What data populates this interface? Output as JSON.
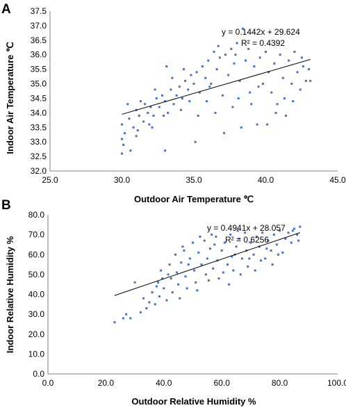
{
  "chart_data": [
    {
      "type": "scatter",
      "panel_label": "A",
      "xlabel": "Outdoor Air Temperature ℃",
      "ylabel": "Indoor Air Temperature ℃",
      "xlim": [
        25.0,
        45.0
      ],
      "ylim": [
        32.0,
        37.5
      ],
      "xticks": [
        "25.0",
        "30.0",
        "35.0",
        "40.0",
        "45.0"
      ],
      "yticks": [
        "32.0",
        "32.5",
        "33.0",
        "33.5",
        "34.0",
        "34.5",
        "35.0",
        "35.5",
        "36.0",
        "36.5",
        "37.0",
        "37.5"
      ],
      "marker_color": "#4472C4",
      "trendline": {
        "slope": 0.1442,
        "intercept": 29.624,
        "x_range": [
          30.0,
          43.1
        ]
      },
      "equation": "y = 0.1442x + 29.624",
      "r_squared": "R² = 0.4392",
      "grid": false,
      "points": [
        [
          30.0,
          32.6
        ],
        [
          30.1,
          32.9
        ],
        [
          30.0,
          33.1
        ],
        [
          30.6,
          32.7
        ],
        [
          33.0,
          32.7
        ],
        [
          30.2,
          33.3
        ],
        [
          30.0,
          33.6
        ],
        [
          30.5,
          33.8
        ],
        [
          30.8,
          33.5
        ],
        [
          31.0,
          33.2
        ],
        [
          31.2,
          33.9
        ],
        [
          31.0,
          34.1
        ],
        [
          31.5,
          33.7
        ],
        [
          31.8,
          34.0
        ],
        [
          31.6,
          34.3
        ],
        [
          32.0,
          34.2
        ],
        [
          32.2,
          33.9
        ],
        [
          32.4,
          34.5
        ],
        [
          32.6,
          34.2
        ],
        [
          32.8,
          34.6
        ],
        [
          33.0,
          34.4
        ],
        [
          33.2,
          34.0
        ],
        [
          33.4,
          34.8
        ],
        [
          33.6,
          34.3
        ],
        [
          33.8,
          34.6
        ],
        [
          34.0,
          34.9
        ],
        [
          34.2,
          34.5
        ],
        [
          34.4,
          35.1
        ],
        [
          34.6,
          34.8
        ],
        [
          34.8,
          35.3
        ],
        [
          35.0,
          35.0
        ],
        [
          35.2,
          35.4
        ],
        [
          35.4,
          34.7
        ],
        [
          35.6,
          35.6
        ],
        [
          35.8,
          35.2
        ],
        [
          36.0,
          35.8
        ],
        [
          36.2,
          35.0
        ],
        [
          36.4,
          36.1
        ],
        [
          36.6,
          35.5
        ],
        [
          36.8,
          35.9
        ],
        [
          37.0,
          34.6
        ],
        [
          37.2,
          36.0
        ],
        [
          37.4,
          35.3
        ],
        [
          37.6,
          36.2
        ],
        [
          37.8,
          35.7
        ],
        [
          38.0,
          36.4
        ],
        [
          38.2,
          35.1
        ],
        [
          38.4,
          36.9
        ],
        [
          38.6,
          35.8
        ],
        [
          38.8,
          36.2
        ],
        [
          39.0,
          34.3
        ],
        [
          39.2,
          35.6
        ],
        [
          39.4,
          33.6
        ],
        [
          39.6,
          35.9
        ],
        [
          39.8,
          35.0
        ],
        [
          40.0,
          36.1
        ],
        [
          40.2,
          35.4
        ],
        [
          40.4,
          34.7
        ],
        [
          40.6,
          35.7
        ],
        [
          40.8,
          34.3
        ],
        [
          41.0,
          36.0
        ],
        [
          41.2,
          35.2
        ],
        [
          41.4,
          33.9
        ],
        [
          41.6,
          35.8
        ],
        [
          41.8,
          35.0
        ],
        [
          42.0,
          36.1
        ],
        [
          42.2,
          35.4
        ],
        [
          42.4,
          34.8
        ],
        [
          42.6,
          35.6
        ],
        [
          42.8,
          35.1
        ],
        [
          43.0,
          35.5
        ],
        [
          43.1,
          35.1
        ],
        [
          31.3,
          34.4
        ],
        [
          31.9,
          33.6
        ],
        [
          32.3,
          34.8
        ],
        [
          32.9,
          33.9
        ],
        [
          33.5,
          35.2
        ],
        [
          34.1,
          34.1
        ],
        [
          34.7,
          34.4
        ],
        [
          35.3,
          33.9
        ],
        [
          35.9,
          34.4
        ],
        [
          36.5,
          34.0
        ],
        [
          37.1,
          33.3
        ],
        [
          37.7,
          34.2
        ],
        [
          38.3,
          33.5
        ],
        [
          38.9,
          34.7
        ],
        [
          39.5,
          34.9
        ],
        [
          40.1,
          33.6
        ],
        [
          40.7,
          34.0
        ],
        [
          41.3,
          34.5
        ],
        [
          41.9,
          34.4
        ],
        [
          42.5,
          35.9
        ],
        [
          36.7,
          36.3
        ],
        [
          37.9,
          36.0
        ],
        [
          33.1,
          35.6
        ],
        [
          34.3,
          35.5
        ],
        [
          35.1,
          33.0
        ],
        [
          30.4,
          34.3
        ],
        [
          31.1,
          33.4
        ],
        [
          32.1,
          33.5
        ],
        [
          36.1,
          34.9
        ],
        [
          38.1,
          34.5
        ]
      ]
    },
    {
      "type": "scatter",
      "panel_label": "B",
      "xlabel": "Outdoor Relative Humidity %",
      "ylabel": "Indoor Relative Humidity %",
      "xlim": [
        0.0,
        100.0
      ],
      "ylim": [
        0.0,
        80.0
      ],
      "xticks": [
        "0.0",
        "20.0",
        "40.0",
        "60.0",
        "80.0",
        "100.0"
      ],
      "yticks": [
        "0.0",
        "10.0",
        "20.0",
        "30.0",
        "40.0",
        "50.0",
        "60.0",
        "70.0",
        "80.0"
      ],
      "marker_color": "#4472C4",
      "trendline": {
        "slope": 0.4941,
        "intercept": 28.057,
        "x_range": [
          23.0,
          87.0
        ]
      },
      "equation": "y = 0.4941x + 28.057",
      "r_squared": "R² = 0.6256",
      "grid": false,
      "points": [
        [
          23.0,
          26.0
        ],
        [
          26.0,
          28.0
        ],
        [
          27.0,
          30.0
        ],
        [
          28.5,
          28.0
        ],
        [
          30.0,
          46.0
        ],
        [
          32.0,
          31.0
        ],
        [
          33.0,
          38.0
        ],
        [
          34.0,
          33.0
        ],
        [
          35.0,
          36.0
        ],
        [
          36.0,
          41.0
        ],
        [
          37.0,
          35.0
        ],
        [
          38.0,
          46.0
        ],
        [
          38.5,
          39.0
        ],
        [
          39.0,
          52.0
        ],
        [
          40.0,
          43.0
        ],
        [
          41.0,
          37.0
        ],
        [
          42.0,
          55.0
        ],
        [
          42.5,
          48.0
        ],
        [
          43.0,
          41.0
        ],
        [
          44.0,
          60.0
        ],
        [
          44.5,
          51.0
        ],
        [
          45.0,
          45.0
        ],
        [
          46.0,
          56.0
        ],
        [
          47.0,
          62.0
        ],
        [
          47.5,
          49.0
        ],
        [
          48.0,
          43.0
        ],
        [
          49.0,
          58.0
        ],
        [
          50.0,
          66.0
        ],
        [
          50.5,
          52.0
        ],
        [
          51.0,
          46.0
        ],
        [
          52.0,
          61.0
        ],
        [
          53.0,
          55.0
        ],
        [
          54.0,
          67.0
        ],
        [
          54.5,
          50.0
        ],
        [
          55.0,
          58.0
        ],
        [
          56.0,
          63.0
        ],
        [
          57.0,
          53.0
        ],
        [
          58.0,
          69.0
        ],
        [
          58.5,
          57.0
        ],
        [
          59.0,
          48.0
        ],
        [
          60.0,
          62.0
        ],
        [
          61.0,
          66.0
        ],
        [
          62.0,
          55.0
        ],
        [
          63.0,
          70.0
        ],
        [
          63.5,
          59.0
        ],
        [
          64.0,
          52.0
        ],
        [
          65.0,
          64.0
        ],
        [
          66.0,
          68.0
        ],
        [
          67.0,
          58.0
        ],
        [
          68.0,
          71.0
        ],
        [
          68.5,
          62.0
        ],
        [
          69.0,
          54.0
        ],
        [
          70.0,
          66.0
        ],
        [
          71.0,
          60.0
        ],
        [
          72.0,
          69.0
        ],
        [
          73.0,
          64.0
        ],
        [
          74.0,
          71.0
        ],
        [
          75.0,
          58.0
        ],
        [
          76.0,
          67.0
        ],
        [
          77.0,
          62.0
        ],
        [
          78.0,
          70.0
        ],
        [
          79.0,
          65.0
        ],
        [
          80.0,
          72.0
        ],
        [
          81.0,
          61.0
        ],
        [
          82.0,
          68.0
        ],
        [
          83.0,
          71.0
        ],
        [
          84.0,
          66.0
        ],
        [
          85.0,
          73.0
        ],
        [
          86.0,
          70.0
        ],
        [
          87.0,
          74.0
        ],
        [
          86.5,
          67.0
        ],
        [
          84.5,
          72.0
        ],
        [
          41.5,
          50.0
        ],
        [
          45.5,
          38.0
        ],
        [
          48.5,
          55.0
        ],
        [
          51.5,
          42.0
        ],
        [
          55.5,
          47.0
        ],
        [
          57.5,
          65.0
        ],
        [
          60.5,
          51.0
        ],
        [
          62.5,
          45.0
        ],
        [
          64.5,
          60.0
        ],
        [
          66.5,
          50.0
        ],
        [
          69.5,
          58.0
        ],
        [
          71.5,
          52.0
        ],
        [
          73.5,
          57.0
        ],
        [
          75.5,
          63.0
        ],
        [
          77.5,
          55.0
        ],
        [
          79.5,
          60.0
        ],
        [
          52.5,
          69.0
        ],
        [
          56.5,
          70.0
        ],
        [
          65.5,
          72.0
        ],
        [
          46.5,
          64.0
        ],
        [
          39.5,
          48.0
        ],
        [
          37.5,
          44.0
        ]
      ]
    }
  ]
}
